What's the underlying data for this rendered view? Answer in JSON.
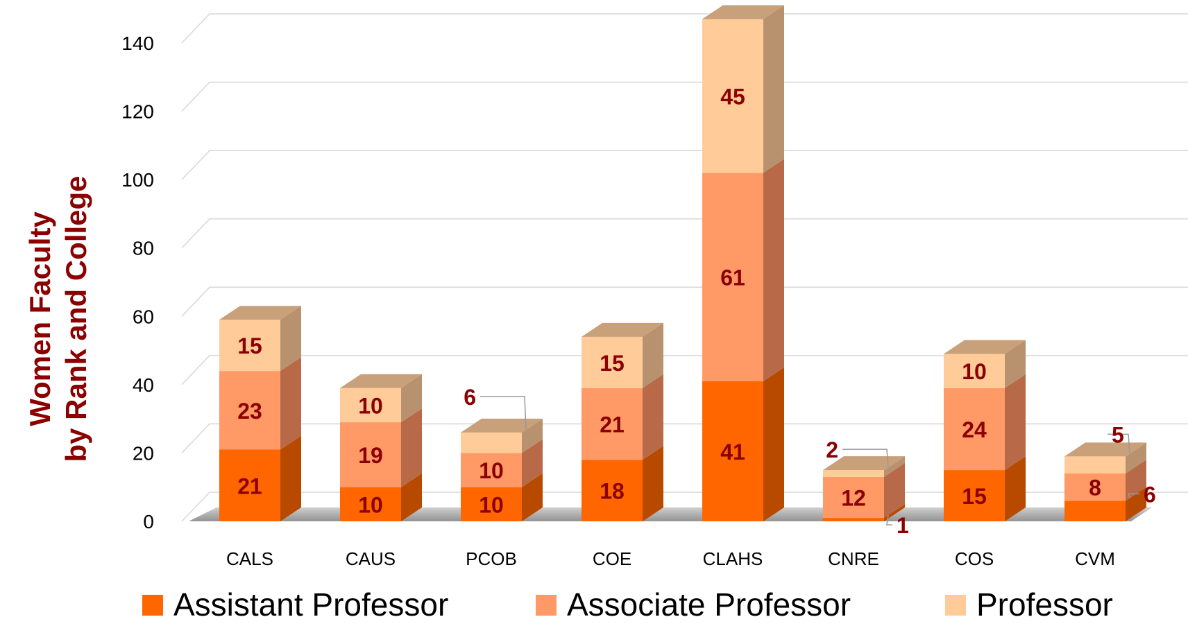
{
  "chart_data": {
    "type": "bar",
    "stacked": true,
    "three_d": true,
    "ylabel_line1": "Women Faculty",
    "ylabel_line2": "by Rank and College",
    "categories": [
      "CALS",
      "CAUS",
      "PCOB",
      "COE",
      "CLAHS",
      "CNRE",
      "COS",
      "CVM"
    ],
    "series": [
      {
        "name": "Assistant Professor",
        "values": [
          21,
          10,
          10,
          18,
          41,
          1,
          15,
          6
        ],
        "color": "#FF6600",
        "side": "#B84A00",
        "top": "#E06010"
      },
      {
        "name": "Associate Professor",
        "values": [
          23,
          19,
          10,
          21,
          61,
          12,
          24,
          8
        ],
        "color": "#FF9966",
        "side": "#B86A48",
        "top": "#E08A5C"
      },
      {
        "name": "Professor",
        "values": [
          15,
          10,
          6,
          15,
          45,
          2,
          10,
          5
        ],
        "color": "#FFCC99",
        "side": "#B8926E",
        "top": "#C8A07A"
      }
    ],
    "ylim": [
      0,
      140
    ],
    "yticks": [
      0,
      20,
      40,
      60,
      80,
      100,
      120,
      140
    ],
    "grid": true,
    "legend_position": "bottom"
  }
}
